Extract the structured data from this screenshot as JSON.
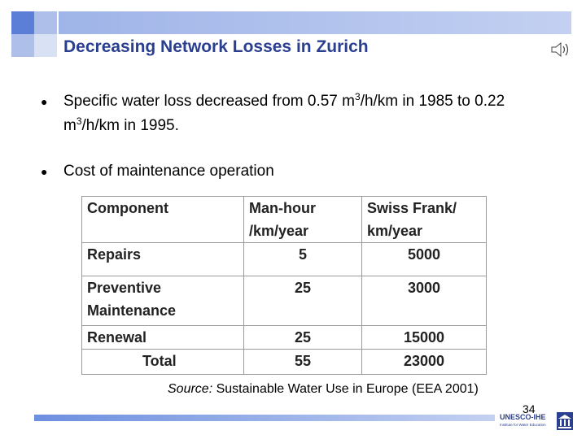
{
  "slide": {
    "title": "Decreasing Network Losses in Zurich",
    "page_number": "34"
  },
  "bullets": [
    {
      "part1": "Specific water loss decreased from 0.57 m",
      "sup1": "3",
      "part2": "/h/km in 1985 to 0.22 m",
      "sup2": "3",
      "part3": "/h/km in 1995."
    },
    {
      "text": "Cost of maintenance operation"
    }
  ],
  "table": {
    "headers": {
      "component": "Component",
      "manhour_1": "Man-hour",
      "manhour_2": "/km/year",
      "swiss_1": "Swiss Frank/",
      "swiss_2": "km/year"
    },
    "rows": [
      {
        "component": "Repairs",
        "manhour": "5",
        "swiss": "5000"
      },
      {
        "component_1": "Preventive",
        "component_2": "Maintenance",
        "manhour": "25",
        "swiss": "3000"
      },
      {
        "component": "Renewal",
        "manhour": "25",
        "swiss": "15000"
      },
      {
        "component": "Total",
        "manhour": "55",
        "swiss": "23000"
      }
    ]
  },
  "source": {
    "label": "Source:",
    "text": " Sustainable Water Use in Europe (EEA 2001)"
  },
  "logo": {
    "name": "UNESCO-IHE",
    "subtitle": "Institute for Water Education"
  },
  "icons": {
    "bullet": "bullet-dot",
    "speaker": "speaker-icon"
  }
}
